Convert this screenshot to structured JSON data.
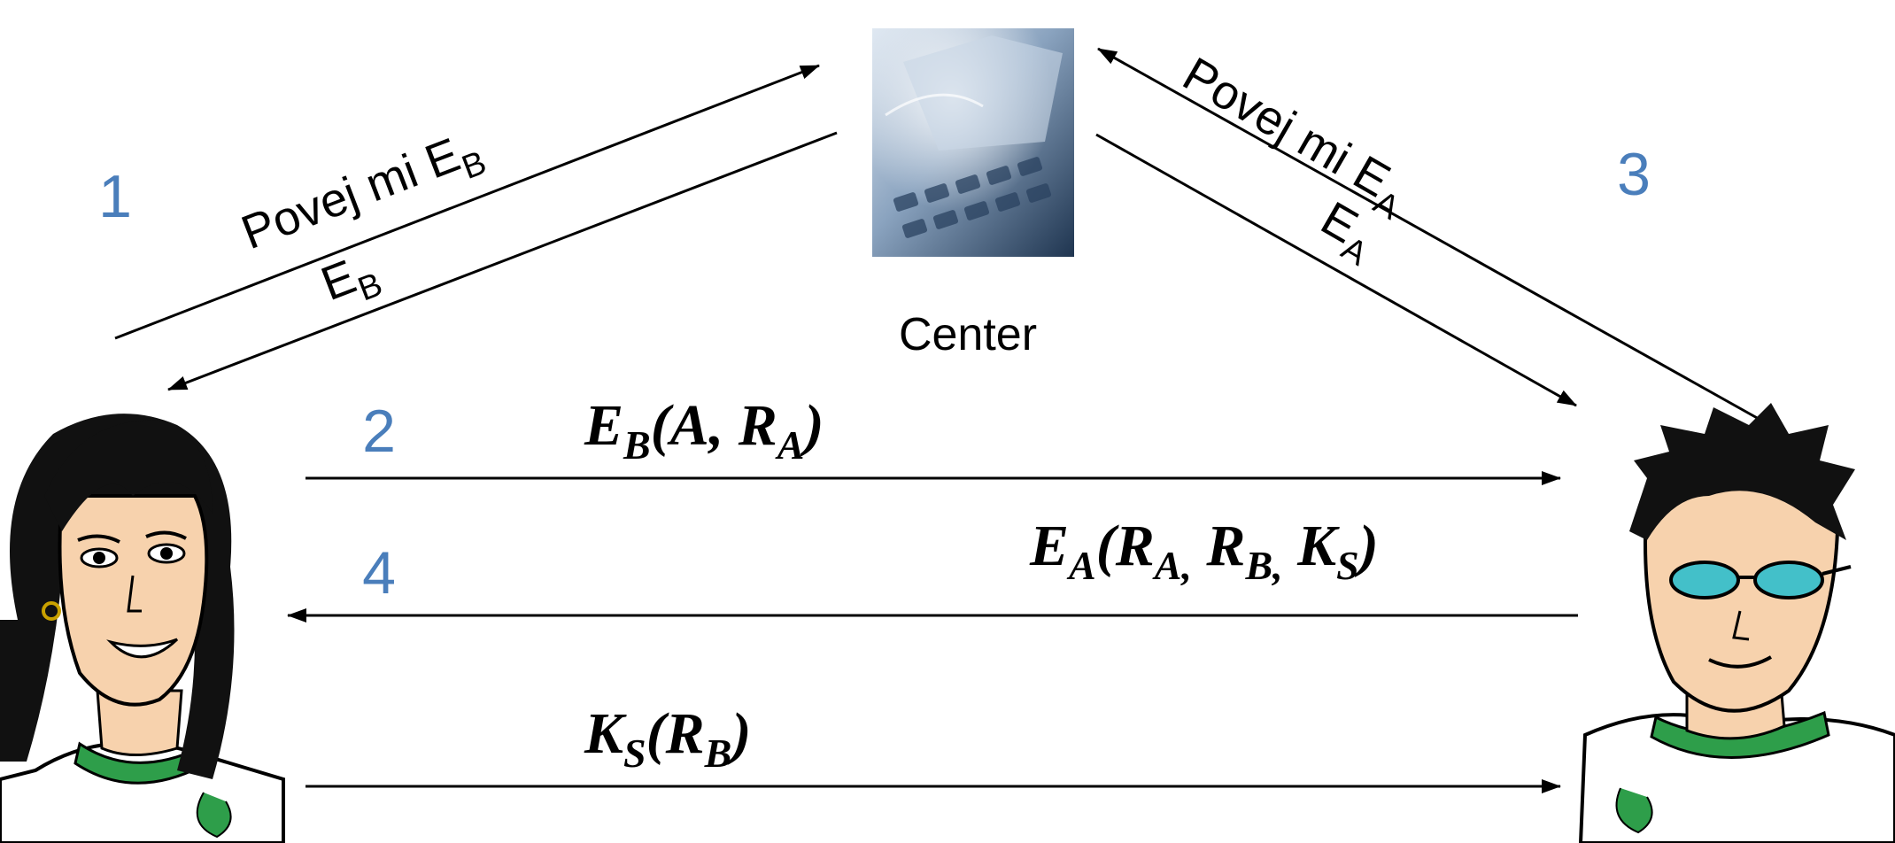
{
  "steps": [
    "1",
    "2",
    "3",
    "4"
  ],
  "center": {
    "label": "Center"
  },
  "labels": {
    "ask_eb": {
      "text": "Povej mi E",
      "sub": "B"
    },
    "eb": {
      "text": "E",
      "sub": "B"
    },
    "ask_ea": {
      "text": "Povej mi E",
      "sub": "A"
    },
    "ea": {
      "text": "E",
      "sub": "A"
    }
  },
  "messages": {
    "m2": {
      "e": "E",
      "e_sub": "B",
      "open": "(A, R",
      "r_sub": "A",
      "close": ")"
    },
    "m4": {
      "e": "E",
      "e_sub": "A",
      "p1": "(R",
      "s1": "A,",
      "p2": " R",
      "s2": "B,",
      "p3": " K",
      "s3": "S",
      "close": ")"
    },
    "m5": {
      "k": "K",
      "k_sub": "S",
      "open": "(R",
      "r_sub": "B",
      "close": ")"
    }
  },
  "colors": {
    "step": "#4a7ebb"
  },
  "icons": [
    "alice-cartoon-icon",
    "bob-cartoon-icon",
    "keyboard-computer-icon"
  ]
}
